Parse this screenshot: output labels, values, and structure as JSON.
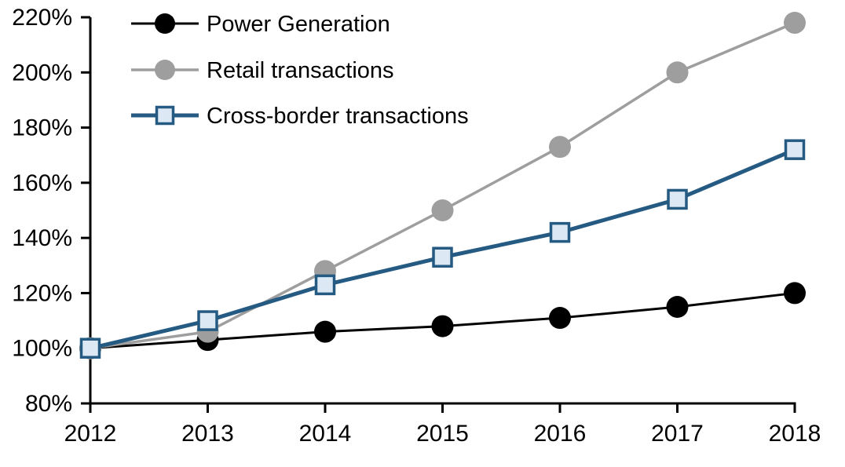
{
  "chart_data": {
    "type": "line",
    "title": "",
    "xlabel": "",
    "ylabel": "",
    "x": [
      "2012",
      "2013",
      "2014",
      "2015",
      "2016",
      "2017",
      "2018"
    ],
    "series": [
      {
        "name": "Power Generation",
        "values": [
          100,
          103,
          106,
          108,
          111,
          115,
          120
        ],
        "color": "#000000",
        "marker": "circle",
        "marker_fill": "#000000",
        "line_width": 3
      },
      {
        "name": "Retail transactions",
        "values": [
          100,
          106,
          128,
          150,
          173,
          200,
          218
        ],
        "color": "#9E9E9E",
        "marker": "circle",
        "marker_fill": "#9E9E9E",
        "line_width": 3.5
      },
      {
        "name": "Cross-border transactions",
        "values": [
          100,
          110,
          123,
          133,
          142,
          154,
          172
        ],
        "color": "#255A82",
        "marker": "square",
        "marker_fill": "#DCE9F5",
        "line_width": 5
      }
    ],
    "ylim": [
      80,
      220
    ],
    "ytick_values": [
      80,
      100,
      120,
      140,
      160,
      180,
      200,
      220
    ],
    "ytick_labels": [
      "80%",
      "100%",
      "120%",
      "140%",
      "160%",
      "180%",
      "200%",
      "220%"
    ],
    "grid": false,
    "legend_position": "top-left-inside",
    "axis_color": "#000000",
    "background_color": "#FFFFFF"
  }
}
